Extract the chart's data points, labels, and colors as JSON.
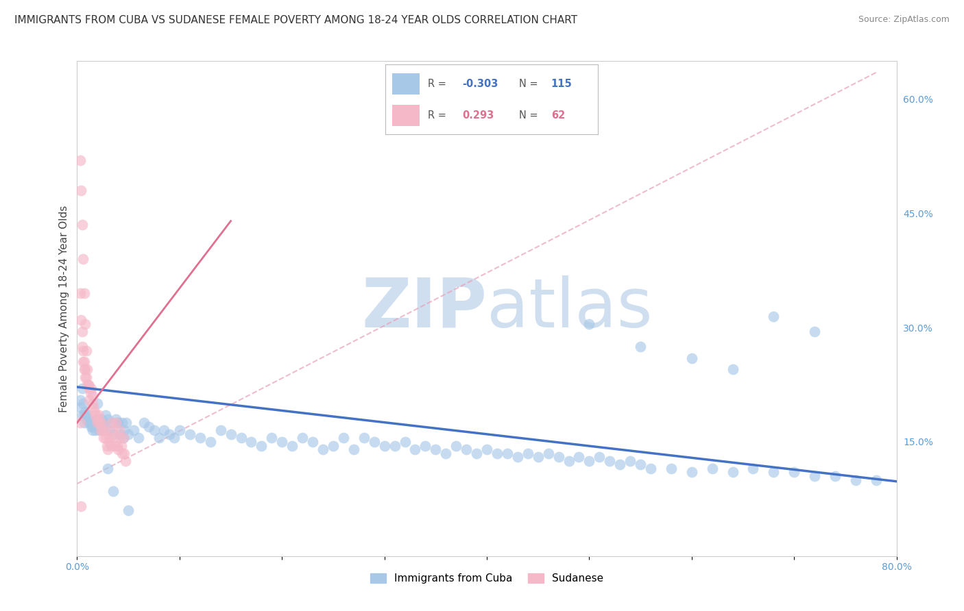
{
  "title": "IMMIGRANTS FROM CUBA VS SUDANESE FEMALE POVERTY AMONG 18-24 YEAR OLDS CORRELATION CHART",
  "source": "Source: ZipAtlas.com",
  "ylabel": "Female Poverty Among 18-24 Year Olds",
  "xlim": [
    0.0,
    0.8
  ],
  "ylim": [
    0.0,
    0.65
  ],
  "xticks": [
    0.0,
    0.1,
    0.2,
    0.3,
    0.4,
    0.5,
    0.6,
    0.7,
    0.8
  ],
  "xticklabels": [
    "0.0%",
    "",
    "",
    "",
    "",
    "",
    "",
    "",
    "80.0%"
  ],
  "yticks_right": [
    0.15,
    0.3,
    0.45,
    0.6
  ],
  "yticklabels_right": [
    "15.0%",
    "30.0%",
    "45.0%",
    "60.0%"
  ],
  "blue_color": "#a8c8e8",
  "pink_color": "#f5b8c8",
  "blue_line_color": "#4472c4",
  "pink_line_color": "#e07090",
  "pink_dashed_color": "#e8a0b8",
  "watermark_zip": "ZIP",
  "watermark_atlas": "atlas",
  "watermark_color": "#d0dff0",
  "background_color": "#ffffff",
  "grid_color": "#e0e0e0",
  "title_fontsize": 11,
  "axis_label_fontsize": 11,
  "tick_fontsize": 10,
  "legend_R_blue": "-0.303",
  "legend_N_blue": "115",
  "legend_R_pink": "0.293",
  "legend_N_pink": "62",
  "legend_label_blue": "Immigrants from Cuba",
  "legend_label_pink": "Sudanese",
  "blue_trendline": {
    "x_start": 0.0,
    "x_end": 0.8,
    "y_start": 0.222,
    "y_end": 0.098
  },
  "pink_trendline_solid": {
    "x_start": 0.0,
    "x_end": 0.15,
    "y_start": 0.175,
    "y_end": 0.44
  },
  "pink_trendline_dashed": {
    "x_start": 0.0,
    "x_end": 0.78,
    "y_start": 0.095,
    "y_end": 0.635
  },
  "blue_scatter_x": [
    0.003,
    0.004,
    0.005,
    0.005,
    0.006,
    0.007,
    0.007,
    0.008,
    0.009,
    0.01,
    0.011,
    0.012,
    0.013,
    0.014,
    0.015,
    0.016,
    0.017,
    0.018,
    0.019,
    0.02,
    0.022,
    0.024,
    0.025,
    0.026,
    0.028,
    0.03,
    0.032,
    0.034,
    0.036,
    0.038,
    0.04,
    0.042,
    0.044,
    0.046,
    0.048,
    0.05,
    0.055,
    0.06,
    0.065,
    0.07,
    0.075,
    0.08,
    0.085,
    0.09,
    0.095,
    0.1,
    0.11,
    0.12,
    0.13,
    0.14,
    0.15,
    0.16,
    0.17,
    0.18,
    0.19,
    0.2,
    0.21,
    0.22,
    0.23,
    0.24,
    0.25,
    0.26,
    0.27,
    0.28,
    0.29,
    0.3,
    0.31,
    0.32,
    0.33,
    0.34,
    0.35,
    0.36,
    0.37,
    0.38,
    0.39,
    0.4,
    0.41,
    0.42,
    0.43,
    0.44,
    0.45,
    0.46,
    0.47,
    0.48,
    0.49,
    0.5,
    0.51,
    0.52,
    0.53,
    0.54,
    0.55,
    0.56,
    0.58,
    0.6,
    0.62,
    0.64,
    0.66,
    0.68,
    0.7,
    0.72,
    0.74,
    0.76,
    0.78,
    0.5,
    0.55,
    0.6,
    0.64,
    0.68,
    0.72,
    0.02,
    0.025,
    0.03,
    0.035,
    0.04,
    0.045,
    0.05
  ],
  "blue_scatter_y": [
    0.205,
    0.195,
    0.185,
    0.22,
    0.2,
    0.185,
    0.175,
    0.19,
    0.18,
    0.185,
    0.175,
    0.18,
    0.175,
    0.17,
    0.165,
    0.17,
    0.175,
    0.165,
    0.18,
    0.175,
    0.165,
    0.18,
    0.175,
    0.165,
    0.185,
    0.18,
    0.165,
    0.175,
    0.16,
    0.18,
    0.175,
    0.16,
    0.175,
    0.165,
    0.175,
    0.16,
    0.165,
    0.155,
    0.175,
    0.17,
    0.165,
    0.155,
    0.165,
    0.16,
    0.155,
    0.165,
    0.16,
    0.155,
    0.15,
    0.165,
    0.16,
    0.155,
    0.15,
    0.145,
    0.155,
    0.15,
    0.145,
    0.155,
    0.15,
    0.14,
    0.145,
    0.155,
    0.14,
    0.155,
    0.15,
    0.145,
    0.145,
    0.15,
    0.14,
    0.145,
    0.14,
    0.135,
    0.145,
    0.14,
    0.135,
    0.14,
    0.135,
    0.135,
    0.13,
    0.135,
    0.13,
    0.135,
    0.13,
    0.125,
    0.13,
    0.125,
    0.13,
    0.125,
    0.12,
    0.125,
    0.12,
    0.115,
    0.115,
    0.11,
    0.115,
    0.11,
    0.115,
    0.11,
    0.11,
    0.105,
    0.105,
    0.1,
    0.1,
    0.305,
    0.275,
    0.26,
    0.245,
    0.315,
    0.295,
    0.2,
    0.175,
    0.115,
    0.085,
    0.175,
    0.155,
    0.06
  ],
  "pink_scatter_x": [
    0.003,
    0.004,
    0.005,
    0.005,
    0.006,
    0.006,
    0.007,
    0.007,
    0.008,
    0.008,
    0.009,
    0.01,
    0.011,
    0.012,
    0.013,
    0.014,
    0.015,
    0.015,
    0.016,
    0.017,
    0.018,
    0.019,
    0.02,
    0.021,
    0.022,
    0.023,
    0.024,
    0.025,
    0.026,
    0.027,
    0.028,
    0.029,
    0.03,
    0.031,
    0.032,
    0.033,
    0.034,
    0.035,
    0.036,
    0.037,
    0.038,
    0.039,
    0.04,
    0.041,
    0.042,
    0.043,
    0.044,
    0.045,
    0.046,
    0.047,
    0.003,
    0.004,
    0.005,
    0.006,
    0.007,
    0.008,
    0.009,
    0.01,
    0.011,
    0.012,
    0.003,
    0.004
  ],
  "pink_scatter_y": [
    0.345,
    0.31,
    0.295,
    0.275,
    0.27,
    0.255,
    0.255,
    0.245,
    0.245,
    0.235,
    0.235,
    0.225,
    0.225,
    0.22,
    0.215,
    0.22,
    0.2,
    0.21,
    0.195,
    0.19,
    0.185,
    0.18,
    0.175,
    0.185,
    0.175,
    0.165,
    0.175,
    0.165,
    0.155,
    0.165,
    0.155,
    0.145,
    0.14,
    0.15,
    0.155,
    0.145,
    0.175,
    0.165,
    0.155,
    0.145,
    0.175,
    0.145,
    0.14,
    0.165,
    0.155,
    0.145,
    0.135,
    0.155,
    0.135,
    0.125,
    0.52,
    0.48,
    0.435,
    0.39,
    0.345,
    0.305,
    0.27,
    0.245,
    0.225,
    0.205,
    0.175,
    0.065
  ]
}
